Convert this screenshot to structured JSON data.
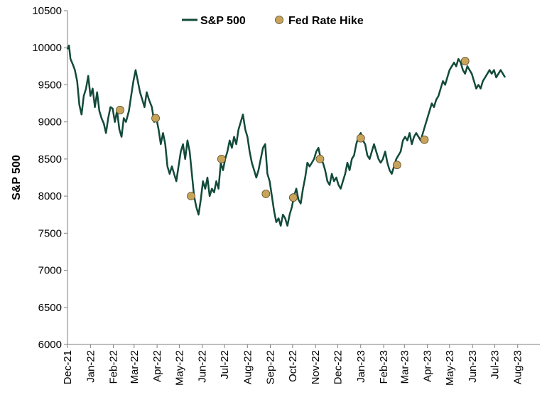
{
  "chart_data": {
    "type": "line",
    "title": "",
    "ylabel": "S&P 500",
    "xlabel": "",
    "ylim": [
      6000,
      10500
    ],
    "yticks": [
      6000,
      6500,
      7000,
      7500,
      8000,
      8500,
      9000,
      9500,
      10000,
      10500
    ],
    "xlim": [
      "2021-12-01",
      "2023-08-31"
    ],
    "xticks": [
      {
        "date": "2021-12-01",
        "label": "Dec-21"
      },
      {
        "date": "2022-01-01",
        "label": "Jan-22"
      },
      {
        "date": "2022-02-01",
        "label": "Feb-22"
      },
      {
        "date": "2022-03-01",
        "label": "Mar-22"
      },
      {
        "date": "2022-04-01",
        "label": "Apr-22"
      },
      {
        "date": "2022-05-01",
        "label": "May-22"
      },
      {
        "date": "2022-06-01",
        "label": "Jun-22"
      },
      {
        "date": "2022-07-01",
        "label": "Jul-22"
      },
      {
        "date": "2022-08-01",
        "label": "Aug-22"
      },
      {
        "date": "2022-09-01",
        "label": "Sep-22"
      },
      {
        "date": "2022-10-01",
        "label": "Oct-22"
      },
      {
        "date": "2022-11-01",
        "label": "Nov-22"
      },
      {
        "date": "2022-12-01",
        "label": "Dec-22"
      },
      {
        "date": "2023-01-01",
        "label": "Jan-23"
      },
      {
        "date": "2023-02-01",
        "label": "Feb-23"
      },
      {
        "date": "2023-03-01",
        "label": "Mar-23"
      },
      {
        "date": "2023-04-01",
        "label": "Apr-23"
      },
      {
        "date": "2023-05-01",
        "label": "May-23"
      },
      {
        "date": "2023-06-01",
        "label": "Jun-23"
      },
      {
        "date": "2023-07-01",
        "label": "Jul-23"
      },
      {
        "date": "2023-08-01",
        "label": "Aug-23"
      }
    ],
    "grid": false,
    "legend": {
      "position": "top-center"
    },
    "colors": {
      "line": "#124a3a",
      "marker_fill": "#c8a45a",
      "marker_stroke": "#5a4a2a",
      "axis": "#7f7f7f"
    },
    "series": [
      {
        "name": "S&P 500",
        "kind": "line",
        "points": [
          [
            "2021-12-01",
            9980
          ],
          [
            "2021-12-03",
            10030
          ],
          [
            "2021-12-05",
            9850
          ],
          [
            "2021-12-08",
            9780
          ],
          [
            "2021-12-11",
            9700
          ],
          [
            "2021-12-14",
            9550
          ],
          [
            "2021-12-17",
            9230
          ],
          [
            "2021-12-20",
            9100
          ],
          [
            "2021-12-23",
            9350
          ],
          [
            "2021-12-26",
            9450
          ],
          [
            "2021-12-29",
            9620
          ],
          [
            "2022-01-01",
            9350
          ],
          [
            "2022-01-04",
            9450
          ],
          [
            "2022-01-07",
            9200
          ],
          [
            "2022-01-10",
            9400
          ],
          [
            "2022-01-13",
            9150
          ],
          [
            "2022-01-16",
            9050
          ],
          [
            "2022-01-19",
            8980
          ],
          [
            "2022-01-22",
            8850
          ],
          [
            "2022-01-25",
            9050
          ],
          [
            "2022-01-28",
            9200
          ],
          [
            "2022-01-31",
            9180
          ],
          [
            "2022-02-03",
            9000
          ],
          [
            "2022-02-06",
            9150
          ],
          [
            "2022-02-09",
            8900
          ],
          [
            "2022-02-12",
            8800
          ],
          [
            "2022-02-15",
            9050
          ],
          [
            "2022-02-18",
            9000
          ],
          [
            "2022-02-22",
            9150
          ],
          [
            "2022-02-25",
            9350
          ],
          [
            "2022-02-28",
            9550
          ],
          [
            "2022-03-03",
            9700
          ],
          [
            "2022-03-06",
            9550
          ],
          [
            "2022-03-09",
            9400
          ],
          [
            "2022-03-12",
            9300
          ],
          [
            "2022-03-15",
            9200
          ],
          [
            "2022-03-18",
            9400
          ],
          [
            "2022-03-21",
            9300
          ],
          [
            "2022-03-25",
            9200
          ],
          [
            "2022-03-28",
            9000
          ],
          [
            "2022-03-31",
            9050
          ],
          [
            "2022-04-03",
            8900
          ],
          [
            "2022-04-06",
            8700
          ],
          [
            "2022-04-09",
            8850
          ],
          [
            "2022-04-12",
            8700
          ],
          [
            "2022-04-15",
            8400
          ],
          [
            "2022-04-18",
            8300
          ],
          [
            "2022-04-21",
            8400
          ],
          [
            "2022-04-24",
            8300
          ],
          [
            "2022-04-27",
            8200
          ],
          [
            "2022-04-30",
            8400
          ],
          [
            "2022-05-03",
            8600
          ],
          [
            "2022-05-06",
            8700
          ],
          [
            "2022-05-09",
            8500
          ],
          [
            "2022-05-12",
            8750
          ],
          [
            "2022-05-15",
            8600
          ],
          [
            "2022-05-18",
            8300
          ],
          [
            "2022-05-21",
            8000
          ],
          [
            "2022-05-24",
            7850
          ],
          [
            "2022-05-27",
            7750
          ],
          [
            "2022-05-30",
            7950
          ],
          [
            "2022-06-02",
            8200
          ],
          [
            "2022-06-05",
            8100
          ],
          [
            "2022-06-08",
            8250
          ],
          [
            "2022-06-11",
            8000
          ],
          [
            "2022-06-14",
            8100
          ],
          [
            "2022-06-17",
            8050
          ],
          [
            "2022-06-20",
            8200
          ],
          [
            "2022-06-23",
            8100
          ],
          [
            "2022-06-26",
            8450
          ],
          [
            "2022-06-29",
            8350
          ],
          [
            "2022-07-02",
            8500
          ],
          [
            "2022-07-05",
            8600
          ],
          [
            "2022-07-08",
            8750
          ],
          [
            "2022-07-11",
            8650
          ],
          [
            "2022-07-14",
            8800
          ],
          [
            "2022-07-17",
            8700
          ],
          [
            "2022-07-20",
            8900
          ],
          [
            "2022-07-23",
            9000
          ],
          [
            "2022-07-26",
            9100
          ],
          [
            "2022-07-29",
            8900
          ],
          [
            "2022-08-01",
            8800
          ],
          [
            "2022-08-04",
            8600
          ],
          [
            "2022-08-07",
            8450
          ],
          [
            "2022-08-10",
            8350
          ],
          [
            "2022-08-13",
            8250
          ],
          [
            "2022-08-16",
            8350
          ],
          [
            "2022-08-19",
            8500
          ],
          [
            "2022-08-22",
            8650
          ],
          [
            "2022-08-25",
            8700
          ],
          [
            "2022-08-28",
            8300
          ],
          [
            "2022-08-31",
            8200
          ],
          [
            "2022-09-03",
            8000
          ],
          [
            "2022-09-06",
            7800
          ],
          [
            "2022-09-09",
            7650
          ],
          [
            "2022-09-12",
            7700
          ],
          [
            "2022-09-15",
            7600
          ],
          [
            "2022-09-18",
            7750
          ],
          [
            "2022-09-21",
            7700
          ],
          [
            "2022-09-24",
            7600
          ],
          [
            "2022-09-27",
            7750
          ],
          [
            "2022-09-30",
            7850
          ],
          [
            "2022-10-03",
            8000
          ],
          [
            "2022-10-06",
            8100
          ],
          [
            "2022-10-09",
            7950
          ],
          [
            "2022-10-12",
            7900
          ],
          [
            "2022-10-15",
            8100
          ],
          [
            "2022-10-18",
            8250
          ],
          [
            "2022-10-21",
            8450
          ],
          [
            "2022-10-24",
            8400
          ],
          [
            "2022-10-27",
            8450
          ],
          [
            "2022-10-30",
            8500
          ],
          [
            "2022-11-02",
            8600
          ],
          [
            "2022-11-05",
            8650
          ],
          [
            "2022-11-08",
            8500
          ],
          [
            "2022-11-11",
            8450
          ],
          [
            "2022-11-14",
            8350
          ],
          [
            "2022-11-17",
            8200
          ],
          [
            "2022-11-20",
            8150
          ],
          [
            "2022-11-23",
            8300
          ],
          [
            "2022-11-26",
            8200
          ],
          [
            "2022-11-29",
            8250
          ],
          [
            "2022-12-02",
            8150
          ],
          [
            "2022-12-05",
            8100
          ],
          [
            "2022-12-08",
            8200
          ],
          [
            "2022-12-11",
            8300
          ],
          [
            "2022-12-14",
            8450
          ],
          [
            "2022-12-17",
            8350
          ],
          [
            "2022-12-20",
            8500
          ],
          [
            "2022-12-23",
            8550
          ],
          [
            "2022-12-26",
            8700
          ],
          [
            "2022-12-29",
            8800
          ],
          [
            "2023-01-01",
            8850
          ],
          [
            "2023-01-04",
            8750
          ],
          [
            "2023-01-07",
            8700
          ],
          [
            "2023-01-10",
            8550
          ],
          [
            "2023-01-13",
            8500
          ],
          [
            "2023-01-16",
            8600
          ],
          [
            "2023-01-19",
            8700
          ],
          [
            "2023-01-22",
            8600
          ],
          [
            "2023-01-25",
            8500
          ],
          [
            "2023-01-28",
            8450
          ],
          [
            "2023-01-31",
            8500
          ],
          [
            "2023-02-03",
            8600
          ],
          [
            "2023-02-06",
            8450
          ],
          [
            "2023-02-09",
            8350
          ],
          [
            "2023-02-12",
            8300
          ],
          [
            "2023-02-15",
            8400
          ],
          [
            "2023-02-18",
            8500
          ],
          [
            "2023-02-21",
            8550
          ],
          [
            "2023-02-24",
            8600
          ],
          [
            "2023-02-27",
            8750
          ],
          [
            "2023-03-02",
            8800
          ],
          [
            "2023-03-05",
            8750
          ],
          [
            "2023-03-08",
            8850
          ],
          [
            "2023-03-11",
            8700
          ],
          [
            "2023-03-14",
            8800
          ],
          [
            "2023-03-17",
            8850
          ],
          [
            "2023-03-20",
            8800
          ],
          [
            "2023-03-23",
            8750
          ],
          [
            "2023-03-26",
            8850
          ],
          [
            "2023-03-29",
            8950
          ],
          [
            "2023-04-01",
            9050
          ],
          [
            "2023-04-04",
            9150
          ],
          [
            "2023-04-07",
            9250
          ],
          [
            "2023-04-10",
            9200
          ],
          [
            "2023-04-13",
            9300
          ],
          [
            "2023-04-16",
            9350
          ],
          [
            "2023-04-19",
            9450
          ],
          [
            "2023-04-22",
            9550
          ],
          [
            "2023-04-25",
            9500
          ],
          [
            "2023-04-28",
            9600
          ],
          [
            "2023-05-01",
            9700
          ],
          [
            "2023-05-04",
            9750
          ],
          [
            "2023-05-07",
            9800
          ],
          [
            "2023-05-10",
            9750
          ],
          [
            "2023-05-13",
            9850
          ],
          [
            "2023-05-16",
            9800
          ],
          [
            "2023-05-19",
            9700
          ],
          [
            "2023-05-22",
            9650
          ],
          [
            "2023-05-25",
            9750
          ],
          [
            "2023-05-28",
            9700
          ],
          [
            "2023-05-31",
            9650
          ],
          [
            "2023-06-03",
            9550
          ],
          [
            "2023-06-06",
            9450
          ],
          [
            "2023-06-09",
            9500
          ],
          [
            "2023-06-12",
            9450
          ],
          [
            "2023-06-15",
            9550
          ],
          [
            "2023-06-18",
            9600
          ],
          [
            "2023-06-21",
            9650
          ],
          [
            "2023-06-24",
            9700
          ],
          [
            "2023-06-27",
            9650
          ],
          [
            "2023-06-30",
            9700
          ],
          [
            "2023-07-03",
            9600
          ],
          [
            "2023-07-06",
            9650
          ],
          [
            "2023-07-09",
            9700
          ],
          [
            "2023-07-12",
            9650
          ],
          [
            "2023-07-15",
            9600
          ]
        ]
      },
      {
        "name": "Fed Rate Hike",
        "kind": "markers",
        "points": [
          [
            "2022-02-10",
            9160
          ],
          [
            "2022-03-30",
            9050
          ],
          [
            "2022-05-17",
            8000
          ],
          [
            "2022-06-27",
            8500
          ],
          [
            "2022-08-26",
            8030
          ],
          [
            "2022-10-02",
            7980
          ],
          [
            "2022-11-07",
            8500
          ],
          [
            "2023-01-01",
            8780
          ],
          [
            "2023-02-19",
            8420
          ],
          [
            "2023-03-28",
            8760
          ],
          [
            "2023-05-22",
            9820
          ]
        ]
      }
    ]
  }
}
